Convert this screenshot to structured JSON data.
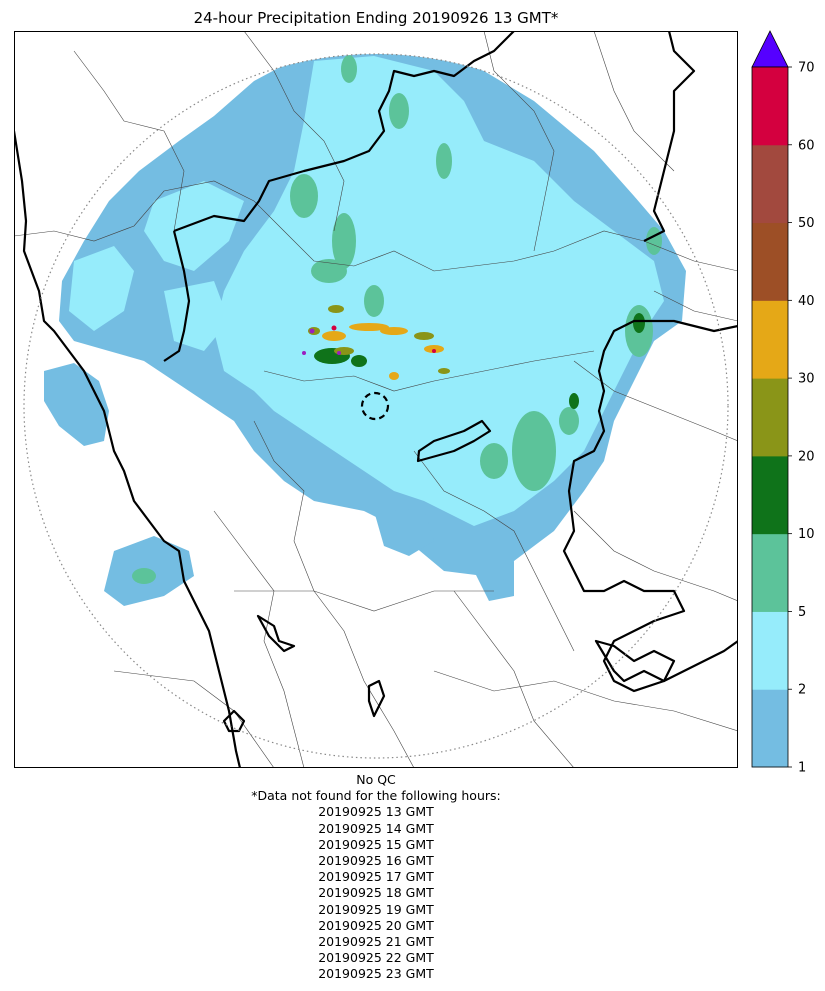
{
  "title": "24-hour Precipitation Ending 20190926 13 GMT*",
  "colorbar": {
    "ticks": [
      "1",
      "2",
      "5",
      "10",
      "20",
      "30",
      "40",
      "50",
      "60",
      "70"
    ],
    "colors": [
      "#74bde2",
      "#96ecfb",
      "#5cc39a",
      "#0f731a",
      "#8a9518",
      "#e5a817",
      "#9d4f26",
      "#a2493e",
      "#d4003f"
    ],
    "extend_color": "#5500ff",
    "units_note": ""
  },
  "map": {
    "colors": {
      "light_blue": "#74bde2",
      "cyan": "#96ecfb",
      "green": "#5cc39a",
      "dark_green": "#0f731a",
      "olive": "#8a9518",
      "orange": "#e5a817",
      "red": "#d4003f",
      "purple": "#9b1fbf"
    },
    "range_ring": "dotted",
    "radar_marker": "dashed-circle"
  },
  "footer": {
    "qc": "No QC",
    "note": "*Data not found for the following hours:",
    "missing_hours": [
      "20190925 13 GMT",
      "20190925 14 GMT",
      "20190925 15 GMT",
      "20190925 16 GMT",
      "20190925 17 GMT",
      "20190925 18 GMT",
      "20190925 19 GMT",
      "20190925 20 GMT",
      "20190925 21 GMT",
      "20190925 22 GMT",
      "20190925 23 GMT"
    ]
  }
}
